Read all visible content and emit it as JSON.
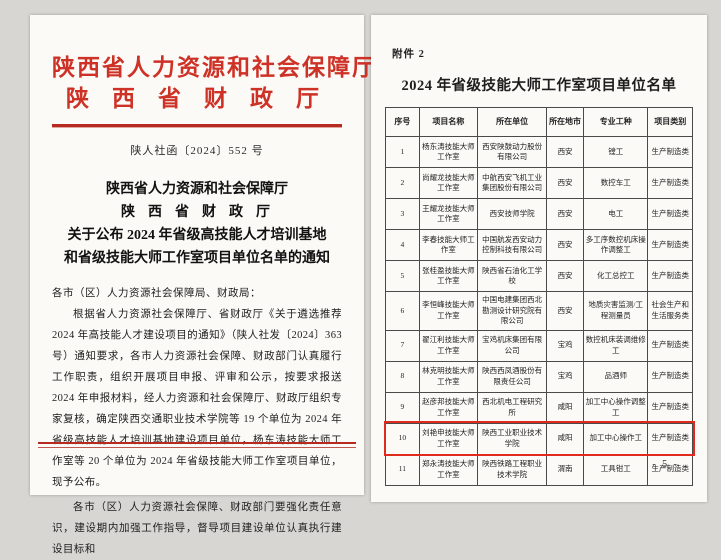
{
  "page_left": {
    "letterhead_line1": "陕西省人力资源和社会保障厅",
    "letterhead_line2": "陕西省财政厅",
    "doc_number": "陕人社函〔2024〕552 号",
    "title_line1": "陕西省人力资源和社会保障厅",
    "title_line2": "陕西省财政厅",
    "title_line3": "关于公布 2024 年省级高技能人才培训基地",
    "title_line4": "和省级技能大师工作室项目单位名单的通知",
    "salutation": "各市（区）人力资源社会保障局、财政局：",
    "paragraph1": "根据省人力资源社会保障厅、省财政厅《关于遴选推荐 2024 年高技能人才建设项目的通知》（陕人社发〔2024〕363 号）通知要求，各市人力资源社会保障、财政部门认真履行工作职责，组织开展项目申报、评审和公示，按要求报送 2024 年申报材料，经人力资源和社会保障厅、财政厅组织专家复核，确定陕西交通职业技术学院等 19 个单位为 2024 年省级高技能人才培训基地建设项目单位，杨东涛技能大师工作室等 20 个单位为 2024 年省级技能大师工作室项目单位，现予公布。",
    "paragraph2": "各市（区）人力资源社会保障、财政部门要强化责任意识，建设期内加强工作指导，督导项目建设单位认真执行建设目标和"
  },
  "page_right": {
    "attachment_label": "附件 2",
    "table_title": "2024 年省级技能大师工作室项目单位名单",
    "page_number": "- 5 -",
    "table": {
      "headers": [
        "序号",
        "项目名称",
        "所在单位",
        "所在地市",
        "专业工种",
        "项目类别"
      ],
      "highlighted_row_no": "10",
      "rows": [
        {
          "no": "1",
          "name": "杨东涛技能大师工作室",
          "unit": "西安陕鼓动力股份有限公司",
          "city": "西安",
          "trade": "镗工",
          "category": "生产制造类"
        },
        {
          "no": "2",
          "name": "尚耀龙技能大师工作室",
          "unit": "中航西安飞机工业集团股份有限公司",
          "city": "西安",
          "trade": "数控车工",
          "category": "生产制造类"
        },
        {
          "no": "3",
          "name": "王耀龙技能大师工作室",
          "unit": "西安技师学院",
          "city": "西安",
          "trade": "电工",
          "category": "生产制造类"
        },
        {
          "no": "4",
          "name": "李春技能大师工作室",
          "unit": "中国航发西安动力控制科技有限公司",
          "city": "西安",
          "trade": "多工序数控机床操作调整工",
          "category": "生产制造类"
        },
        {
          "no": "5",
          "name": "张桂盈技能大师工作室",
          "unit": "陕西省石油化工学校",
          "city": "西安",
          "trade": "化工总控工",
          "category": "生产制造类"
        },
        {
          "no": "6",
          "name": "李恒峰技能大师工作室",
          "unit": "中国电建集团西北勘测设计研究院有限公司",
          "city": "西安",
          "trade": "地质灾害监测/工程测量员",
          "category": "社会生产和生活服务类"
        },
        {
          "no": "7",
          "name": "翟江利技能大师工作室",
          "unit": "宝鸡机床集团有限公司",
          "city": "宝鸡",
          "trade": "数控机床装调维修工",
          "category": "生产制造类"
        },
        {
          "no": "8",
          "name": "林克明技能大师工作室",
          "unit": "陕西西凤酒股份有限责任公司",
          "city": "宝鸡",
          "trade": "品酒师",
          "category": "生产制造类"
        },
        {
          "no": "9",
          "name": "赵彦邦技能大师工作室",
          "unit": "西北机电工程研究所",
          "city": "咸阳",
          "trade": "加工中心操作调整工",
          "category": "生产制造类"
        },
        {
          "no": "10",
          "name": "刘艳申技能大师工作室",
          "unit": "陕西工业职业技术学院",
          "city": "咸阳",
          "trade": "加工中心操作工",
          "category": "生产制造类"
        },
        {
          "no": "11",
          "name": "郑永涛技能大师工作室",
          "unit": "陕西铁路工程职业技术学院",
          "city": "渭南",
          "trade": "工具钳工",
          "category": "生产制造类"
        }
      ]
    }
  },
  "colors": {
    "letterhead_red": "#ce3126",
    "rule_red": "#b62a1f",
    "highlight_red": "#e02a1c",
    "page_bg": "#fbfaf7",
    "scan_bg": "#d7d6d3"
  }
}
